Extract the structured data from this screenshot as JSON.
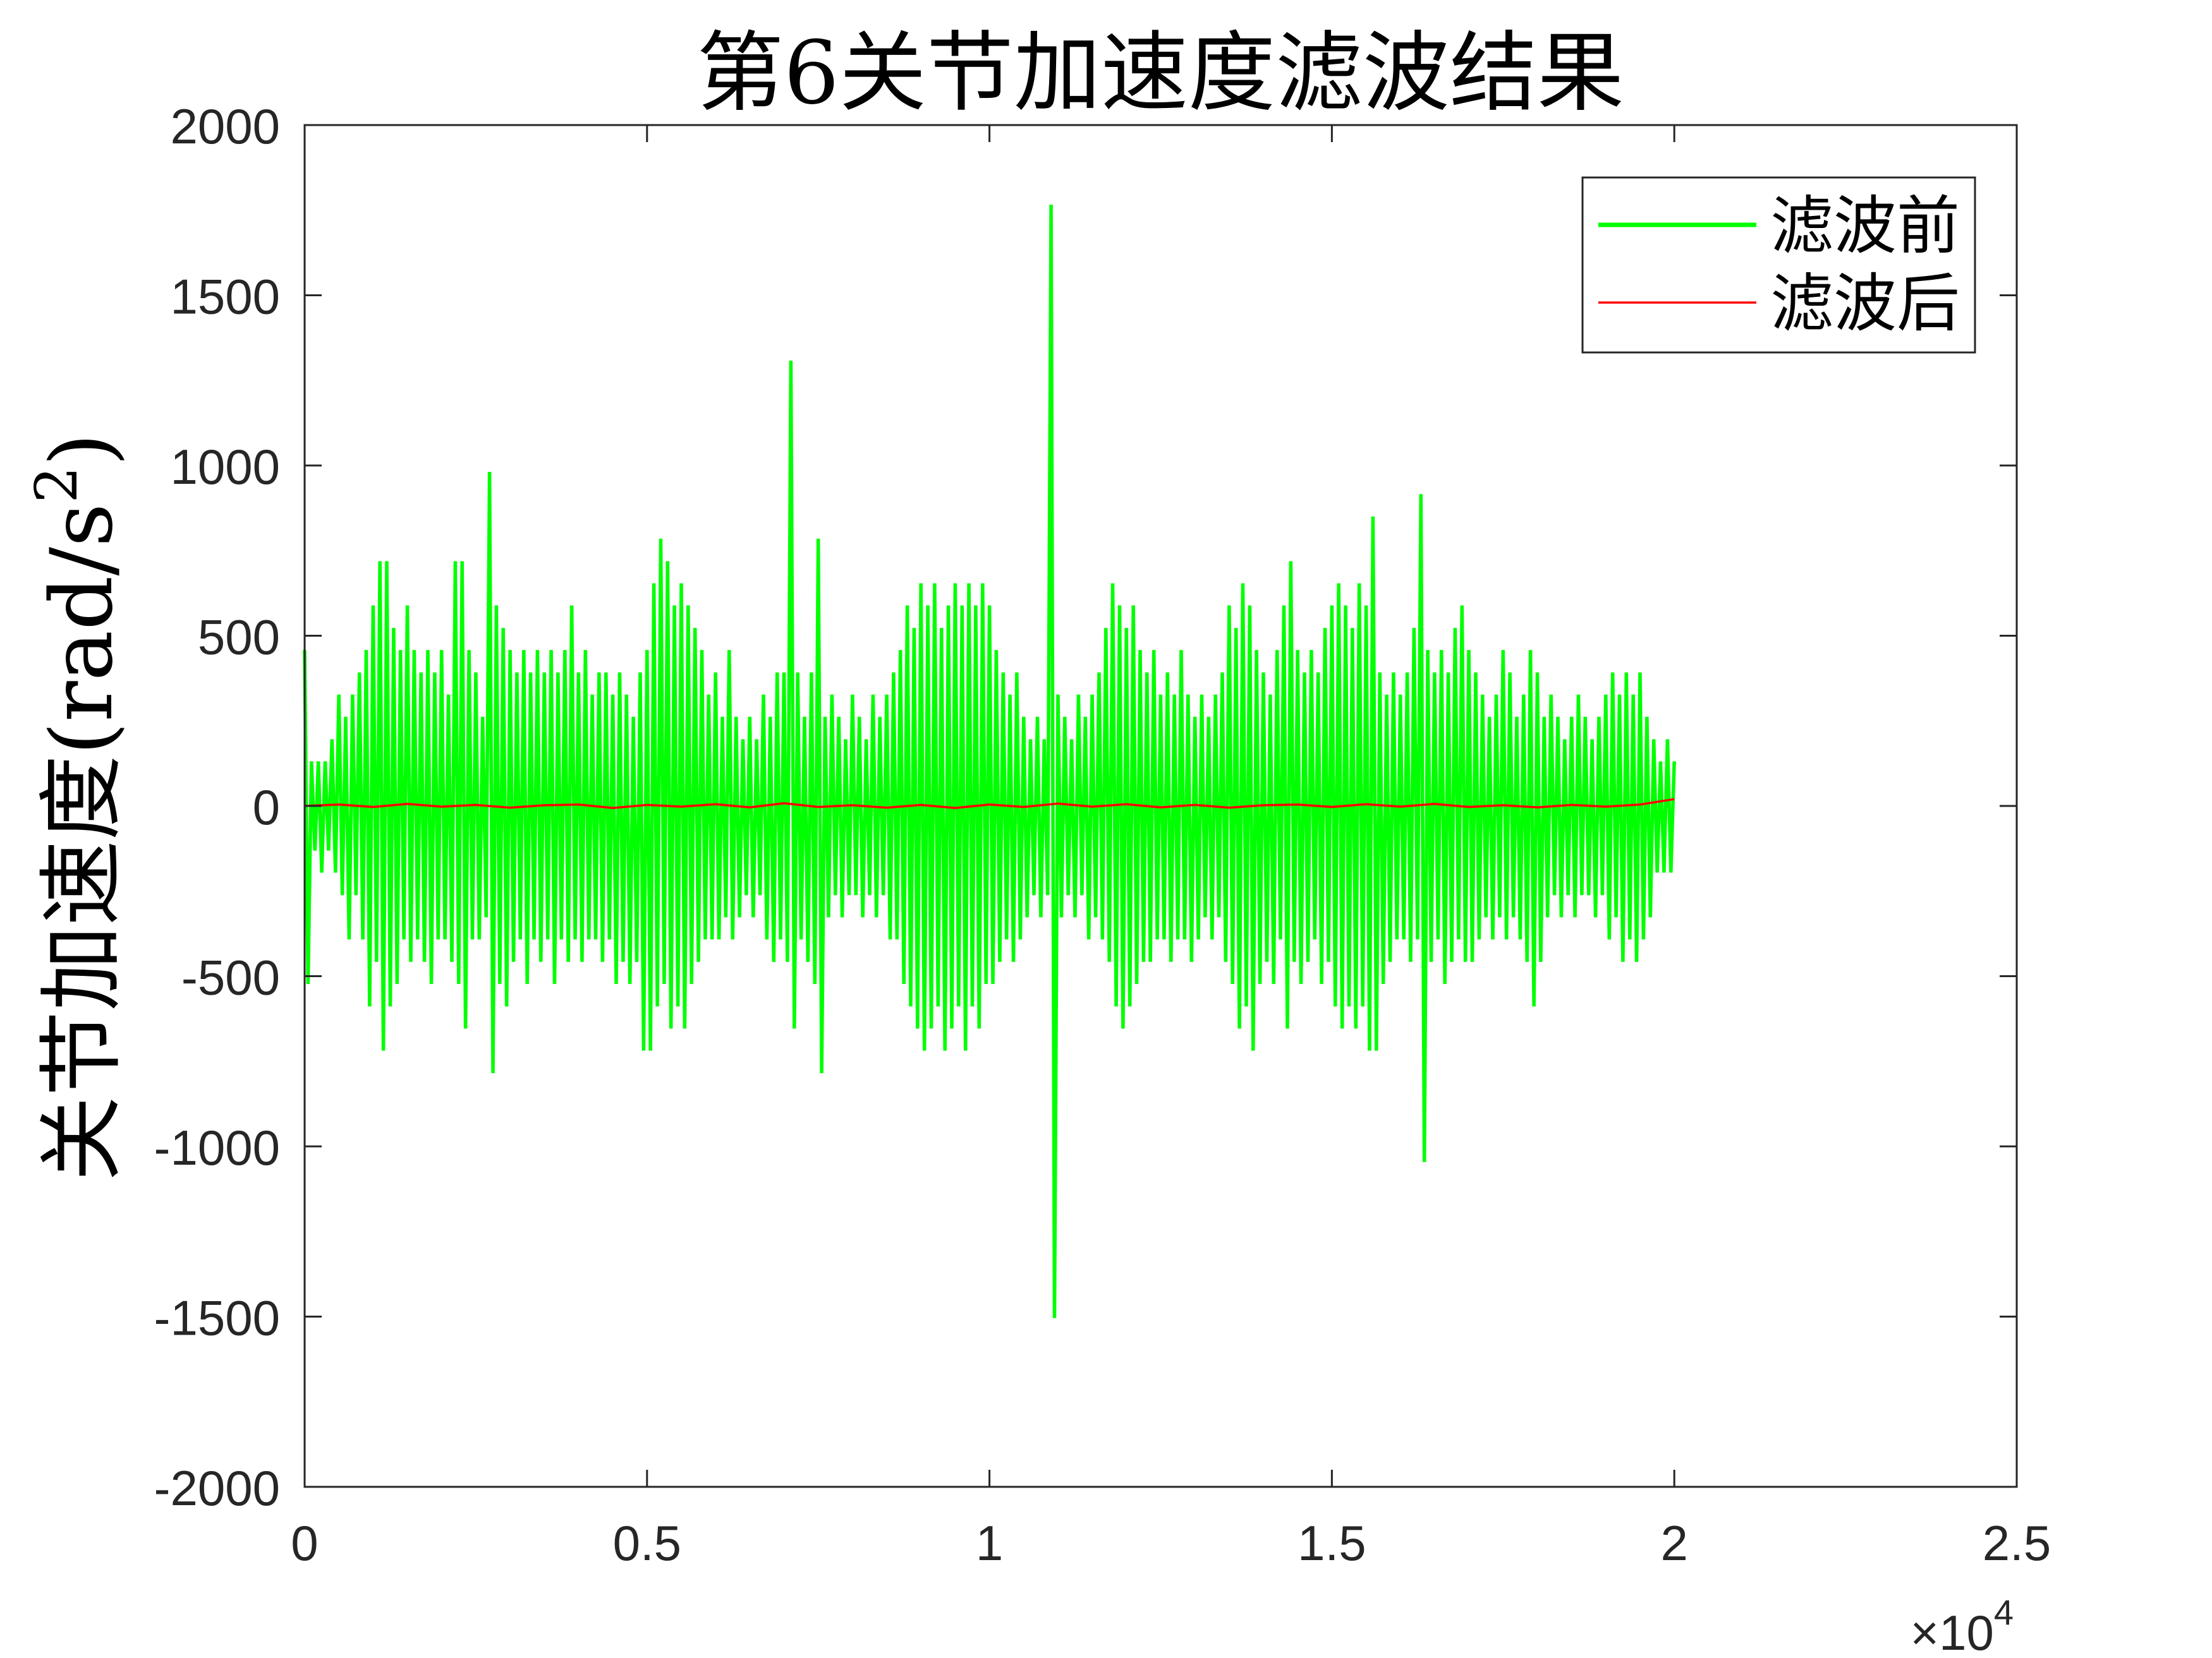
{
  "chart_data": {
    "type": "line",
    "title": "第6关节加速度滤波结果",
    "ylabel": {
      "text": "关节加速度(rad/s",
      "superscript": "2",
      "suffix": ")"
    },
    "x_multiplier": {
      "base": "×10",
      "exponent": "4"
    },
    "xlim": [
      0,
      25000
    ],
    "ylim": [
      -2000,
      2000
    ],
    "grid": false,
    "box": true,
    "legend_position": "top-right",
    "axis_color": "#262626",
    "x_ticks": [
      {
        "value": 0,
        "label": "0"
      },
      {
        "value": 5000,
        "label": "0.5"
      },
      {
        "value": 10000,
        "label": "1"
      },
      {
        "value": 15000,
        "label": "1.5"
      },
      {
        "value": 20000,
        "label": "2"
      },
      {
        "value": 25000,
        "label": "2.5"
      }
    ],
    "y_ticks": [
      {
        "value": 2000,
        "label": "2000"
      },
      {
        "value": 1500,
        "label": "1500"
      },
      {
        "value": 1000,
        "label": "1000"
      },
      {
        "value": 500,
        "label": "500"
      },
      {
        "value": 0,
        "label": "0"
      },
      {
        "value": -500,
        "label": "-500"
      },
      {
        "value": -1000,
        "label": "-1000"
      },
      {
        "value": -1500,
        "label": "-1500"
      },
      {
        "value": -2000,
        "label": "-2000"
      }
    ],
    "series": [
      {
        "name": "滤波前",
        "color": "#00ff00",
        "x": [
          0,
          50,
          100,
          150,
          200,
          250,
          300,
          350,
          400,
          450,
          500,
          550,
          600,
          650,
          700,
          750,
          800,
          850,
          900,
          950,
          1000,
          1050,
          1100,
          1150,
          1200,
          1250,
          1300,
          1350,
          1400,
          1450,
          1500,
          1550,
          1600,
          1650,
          1700,
          1750,
          1800,
          1850,
          1900,
          1950,
          2000,
          2050,
          2100,
          2150,
          2200,
          2250,
          2300,
          2350,
          2400,
          2450,
          2500,
          2550,
          2600,
          2650,
          2700,
          2750,
          2800,
          2850,
          2900,
          2950,
          3000,
          3050,
          3100,
          3150,
          3200,
          3250,
          3300,
          3350,
          3400,
          3450,
          3500,
          3550,
          3600,
          3650,
          3700,
          3750,
          3800,
          3850,
          3900,
          3950,
          4000,
          4050,
          4100,
          4150,
          4200,
          4250,
          4300,
          4350,
          4400,
          4450,
          4500,
          4550,
          4600,
          4650,
          4700,
          4750,
          4800,
          4850,
          4900,
          4950,
          5000,
          5050,
          5100,
          5150,
          5200,
          5250,
          5300,
          5350,
          5400,
          5450,
          5500,
          5550,
          5600,
          5650,
          5700,
          5750,
          5800,
          5850,
          5900,
          5950,
          6000,
          6050,
          6100,
          6150,
          6200,
          6250,
          6300,
          6350,
          6400,
          6450,
          6500,
          6550,
          6600,
          6650,
          6700,
          6750,
          6800,
          6850,
          6900,
          6950,
          7000,
          7050,
          7100,
          7150,
          7200,
          7250,
          7300,
          7350,
          7400,
          7450,
          7500,
          7550,
          7600,
          7650,
          7700,
          7750,
          7800,
          7850,
          7900,
          7950,
          8000,
          8050,
          8100,
          8150,
          8200,
          8250,
          8300,
          8350,
          8400,
          8450,
          8500,
          8550,
          8600,
          8650,
          8700,
          8750,
          8800,
          8850,
          8900,
          8950,
          9000,
          9050,
          9100,
          9150,
          9200,
          9250,
          9300,
          9350,
          9400,
          9450,
          9500,
          9550,
          9600,
          9650,
          9700,
          9750,
          9800,
          9850,
          9900,
          9950,
          10000,
          10050,
          10100,
          10150,
          10200,
          10250,
          10300,
          10350,
          10400,
          10450,
          10500,
          10550,
          10600,
          10650,
          10700,
          10750,
          10800,
          10850,
          10900,
          10950,
          11000,
          11050,
          11100,
          11150,
          11200,
          11250,
          11300,
          11350,
          11400,
          11450,
          11500,
          11550,
          11600,
          11650,
          11700,
          11750,
          11800,
          11850,
          11900,
          11950,
          12000,
          12050,
          12100,
          12150,
          12200,
          12250,
          12300,
          12350,
          12400,
          12450,
          12500,
          12550,
          12600,
          12650,
          12700,
          12750,
          12800,
          12850,
          12900,
          12950,
          13000,
          13050,
          13100,
          13150,
          13200,
          13250,
          13300,
          13350,
          13400,
          13450,
          13500,
          13550,
          13600,
          13650,
          13700,
          13750,
          13800,
          13850,
          13900,
          13950,
          14000,
          14050,
          14100,
          14150,
          14200,
          14250,
          14300,
          14350,
          14400,
          14450,
          14500,
          14550,
          14600,
          14650,
          14700,
          14750,
          14800,
          14850,
          14900,
          14950,
          15000,
          15050,
          15100,
          15150,
          15200,
          15250,
          15300,
          15350,
          15400,
          15450,
          15500,
          15550,
          15600,
          15650,
          15700,
          15750,
          15800,
          15850,
          15900,
          15950,
          16000,
          16050,
          16100,
          16150,
          16200,
          16250,
          16300,
          16350,
          16400,
          16450,
          16500,
          16550,
          16600,
          16650,
          16700,
          16750,
          16800,
          16850,
          16900,
          16950,
          17000,
          17050,
          17100,
          17150,
          17200,
          17250,
          17300,
          17350,
          17400,
          17450,
          17500,
          17550,
          17600,
          17650,
          17700,
          17750,
          17800,
          17850,
          17900,
          17950,
          18000,
          18050,
          18100,
          18150,
          18200,
          18250,
          18300,
          18350,
          18400,
          18450,
          18500,
          18550,
          18600,
          18650,
          18700,
          18750,
          18800,
          18850,
          18900,
          18950,
          19000,
          19050,
          19100,
          19150,
          19200,
          19250,
          19300,
          19350,
          19400,
          19450,
          19500,
          19550,
          19600,
          19650,
          19700,
          19750,
          19800,
          19850,
          19900,
          19950,
          20000
        ],
        "y": [
          458,
          -523,
          131,
          -131,
          131,
          -196,
          131,
          -131,
          196,
          -196,
          327,
          -262,
          262,
          -392,
          327,
          -262,
          392,
          -392,
          458,
          -589,
          589,
          -458,
          719,
          -719,
          719,
          -589,
          523,
          -523,
          458,
          -392,
          589,
          -458,
          458,
          -392,
          392,
          -458,
          458,
          -523,
          392,
          -392,
          458,
          -392,
          327,
          -458,
          719,
          -523,
          719,
          -654,
          458,
          -392,
          392,
          -392,
          262,
          -327,
          981,
          -785,
          589,
          -523,
          523,
          -589,
          458,
          -458,
          392,
          -392,
          458,
          -523,
          392,
          -392,
          458,
          -458,
          392,
          -392,
          458,
          -523,
          392,
          -392,
          458,
          -458,
          589,
          -392,
          392,
          -458,
          458,
          -392,
          327,
          -392,
          392,
          -458,
          392,
          -392,
          327,
          -523,
          392,
          -458,
          327,
          -523,
          262,
          -458,
          392,
          -719,
          458,
          -719,
          654,
          -589,
          785,
          -523,
          719,
          -654,
          589,
          -589,
          654,
          -654,
          589,
          -523,
          523,
          -458,
          458,
          -392,
          327,
          -392,
          392,
          -392,
          262,
          -327,
          458,
          -392,
          262,
          -327,
          196,
          -262,
          262,
          -327,
          196,
          -262,
          327,
          -392,
          262,
          -458,
          392,
          -392,
          392,
          -458,
          1308,
          -654,
          392,
          -392,
          262,
          -458,
          392,
          -523,
          785,
          -785,
          262,
          -327,
          327,
          -262,
          262,
          -327,
          196,
          -262,
          327,
          -262,
          262,
          -327,
          196,
          -262,
          327,
          -327,
          262,
          -262,
          327,
          -392,
          392,
          -392,
          458,
          -523,
          589,
          -589,
          523,
          -654,
          654,
          -719,
          589,
          -654,
          654,
          -589,
          523,
          -719,
          589,
          -654,
          654,
          -589,
          589,
          -719,
          654,
          -589,
          589,
          -654,
          654,
          -523,
          589,
          -523,
          458,
          -458,
          392,
          -392,
          327,
          -458,
          392,
          -392,
          262,
          -327,
          196,
          -262,
          262,
          -327,
          196,
          -262,
          1766,
          -1504,
          327,
          -327,
          262,
          -262,
          196,
          -327,
          327,
          -262,
          262,
          -392,
          327,
          -327,
          392,
          -392,
          523,
          -458,
          654,
          -589,
          589,
          -654,
          523,
          -589,
          589,
          -523,
          458,
          -458,
          392,
          -458,
          458,
          -392,
          327,
          -392,
          392,
          -458,
          327,
          -392,
          458,
          -392,
          327,
          -458,
          262,
          -392,
          327,
          -327,
          262,
          -392,
          327,
          -327,
          392,
          -458,
          589,
          -523,
          523,
          -654,
          654,
          -589,
          589,
          -719,
          458,
          -523,
          392,
          -458,
          327,
          -523,
          458,
          -392,
          589,
          -654,
          719,
          -458,
          458,
          -523,
          392,
          -458,
          458,
          -392,
          392,
          -523,
          523,
          -458,
          589,
          -589,
          654,
          -654,
          589,
          -589,
          523,
          -654,
          654,
          -589,
          589,
          -719,
          850,
          -719,
          392,
          -523,
          327,
          -458,
          392,
          -392,
          327,
          -392,
          392,
          -458,
          523,
          -392,
          916,
          -1046,
          458,
          -458,
          392,
          -392,
          458,
          -523,
          392,
          -458,
          523,
          -392,
          589,
          -458,
          458,
          -458,
          392,
          -392,
          327,
          -327,
          262,
          -392,
          327,
          -327,
          458,
          -392,
          392,
          -327,
          262,
          -392,
          327,
          -458,
          458,
          -589,
          392,
          -458,
          262,
          -327,
          327,
          -262,
          262,
          -327,
          196,
          -262,
          262,
          -327,
          327,
          -262,
          262,
          -262,
          196,
          -327,
          262,
          -262,
          327,
          -392,
          392,
          -327,
          327,
          -458,
          392,
          -392,
          327,
          -458,
          392,
          -392,
          262,
          -327,
          196,
          -196,
          131,
          -196,
          196,
          -196,
          131
        ]
      },
      {
        "name": "滤波后",
        "color": "#ff0000",
        "x": [
          0,
          500,
          1000,
          1500,
          2000,
          2500,
          3000,
          3500,
          4000,
          4500,
          5000,
          5500,
          6000,
          6500,
          7000,
          7500,
          8000,
          8500,
          9000,
          9500,
          10000,
          10500,
          11000,
          11500,
          12000,
          12500,
          13000,
          13500,
          14000,
          14500,
          15000,
          15500,
          16000,
          16500,
          17000,
          17500,
          18000,
          18500,
          19000,
          19500,
          20000
        ],
        "y": [
          0,
          4,
          -3,
          6,
          -2,
          3,
          -5,
          2,
          4,
          -6,
          3,
          -2,
          5,
          -4,
          8,
          -3,
          2,
          -5,
          3,
          -6,
          4,
          -3,
          7,
          -2,
          5,
          -4,
          3,
          -5,
          2,
          4,
          -3,
          5,
          -2,
          6,
          -3,
          2,
          -4,
          3,
          -2,
          4,
          20
        ]
      }
    ]
  }
}
